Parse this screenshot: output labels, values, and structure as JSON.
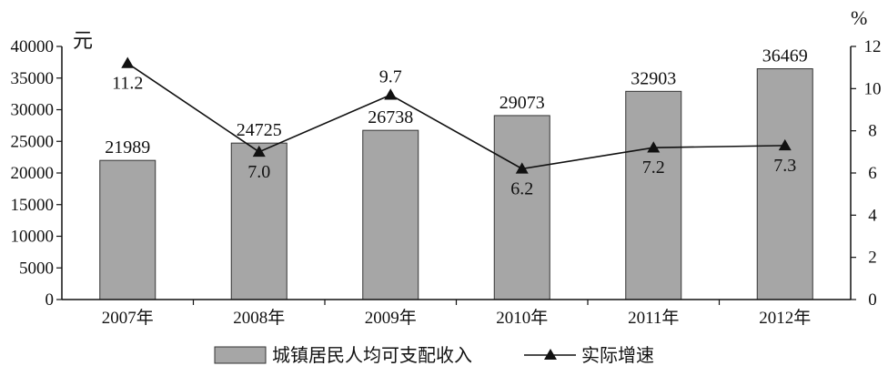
{
  "chart_data": {
    "type": "bar+line",
    "categories": [
      "2007年",
      "2008年",
      "2009年",
      "2010年",
      "2011年",
      "2012年"
    ],
    "series": [
      {
        "name": "城镇居民人均可支配收入",
        "kind": "bar",
        "axis": "left",
        "values": [
          21989,
          24725,
          26738,
          29073,
          32903,
          36469
        ],
        "labels": [
          "21989",
          "24725",
          "26738",
          "29073",
          "32903",
          "36469"
        ],
        "color": "#a6a6a6"
      },
      {
        "name": "实际增速",
        "kind": "line",
        "axis": "right",
        "values": [
          11.2,
          7.0,
          9.7,
          6.2,
          7.2,
          7.3
        ],
        "labels": [
          "11.2",
          "7.0",
          "9.7",
          "6.2",
          "7.2",
          "7.3"
        ],
        "color": "#111111"
      }
    ],
    "y_left": {
      "unit": "元",
      "range": [
        0,
        40000
      ],
      "ticks": [
        0,
        5000,
        10000,
        15000,
        20000,
        25000,
        30000,
        35000,
        40000
      ]
    },
    "y_right": {
      "unit": "%",
      "range": [
        0,
        12
      ],
      "ticks": [
        0,
        2,
        4,
        6,
        8,
        10,
        12
      ]
    },
    "grid": false,
    "legend": "bottom"
  }
}
